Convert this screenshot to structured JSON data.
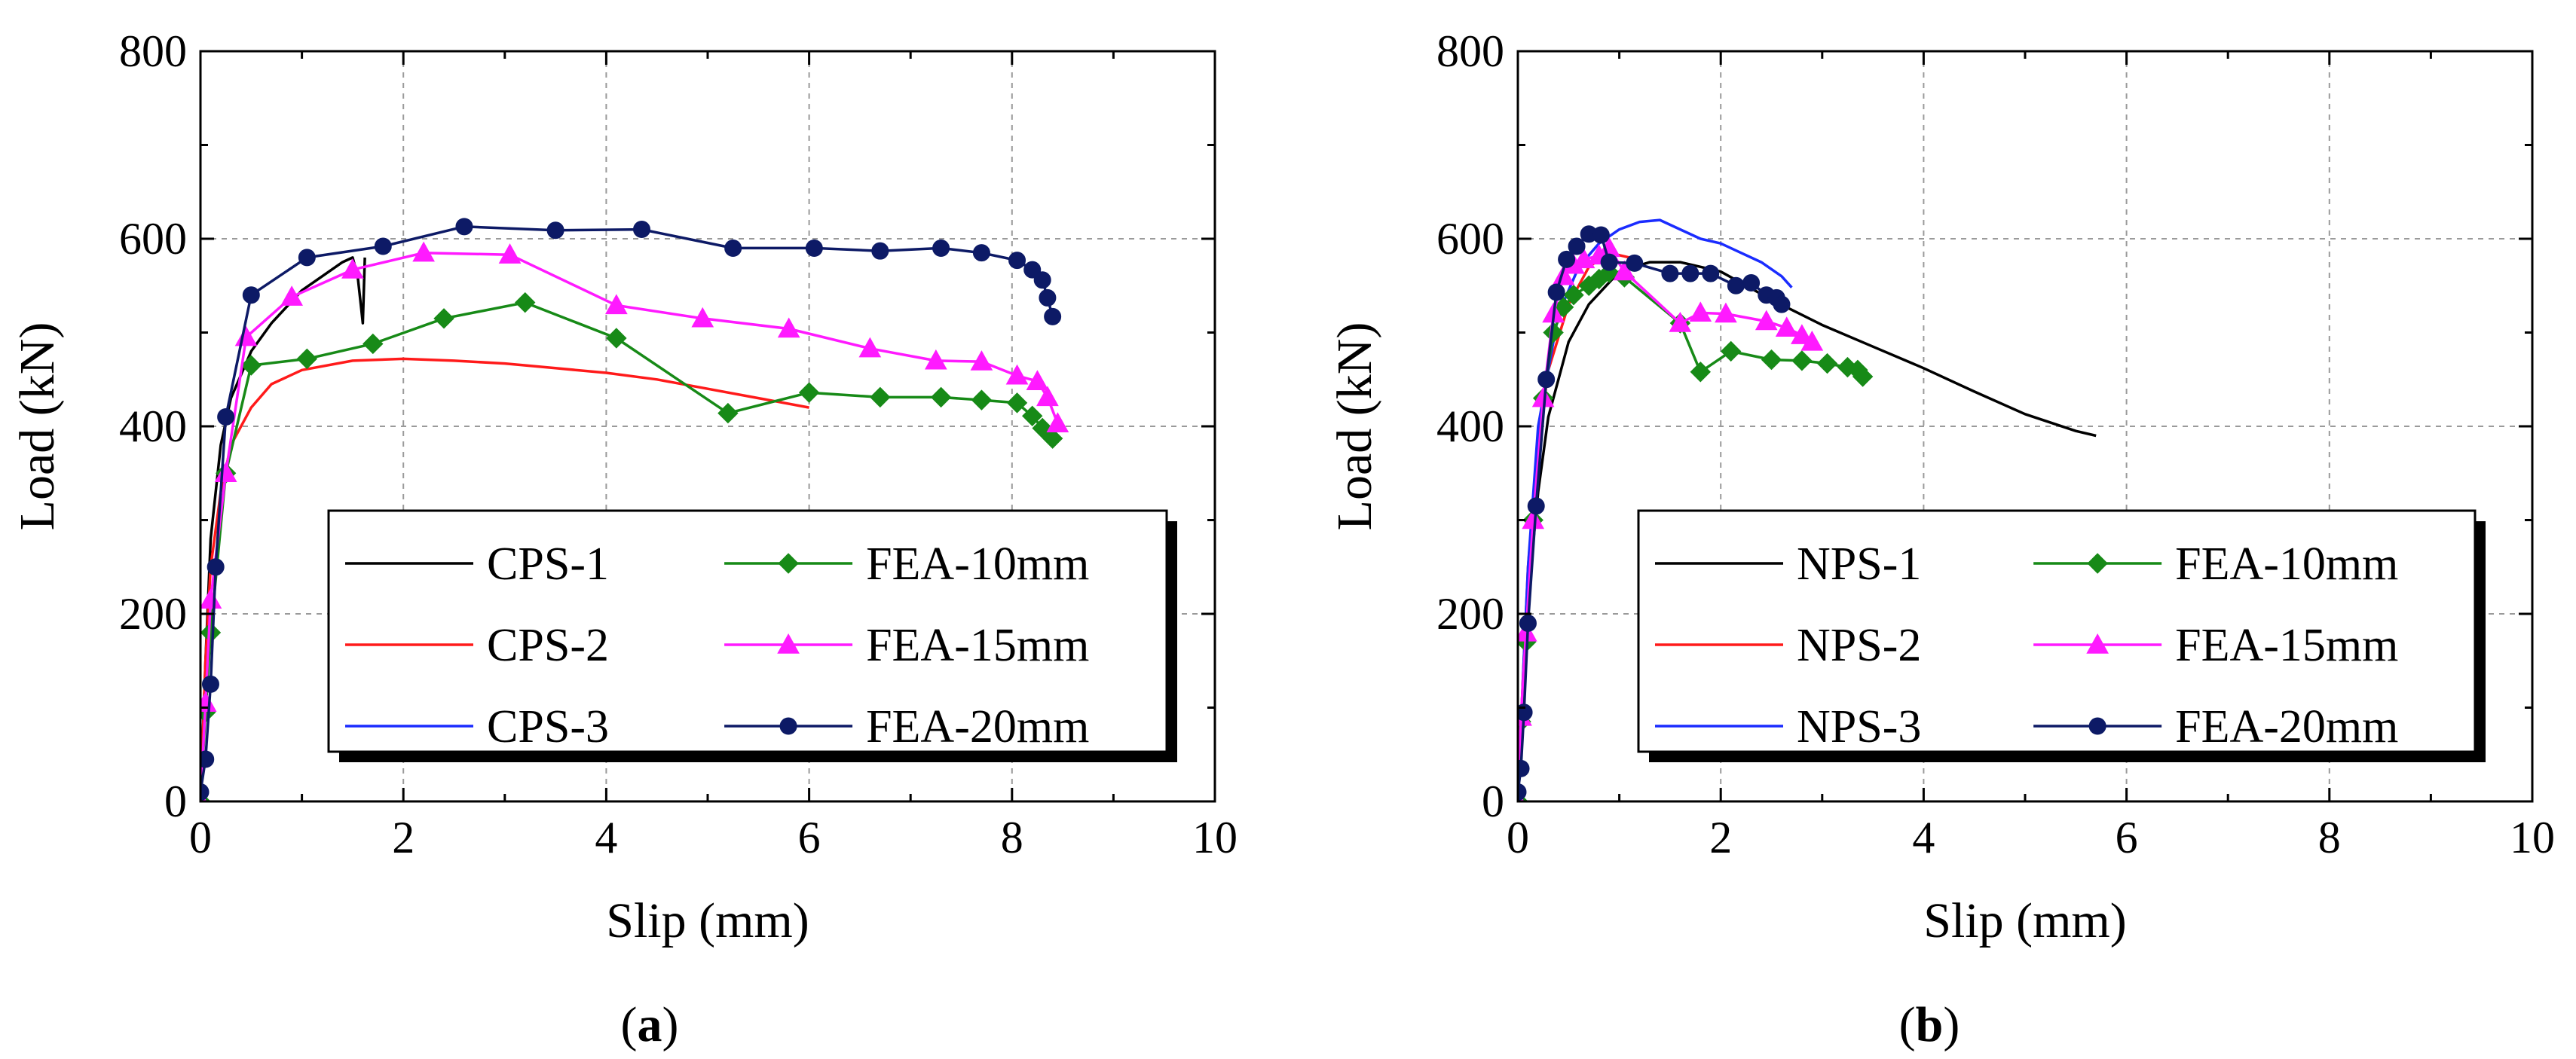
{
  "colors": {
    "black": "#000000",
    "red": "#ff1a1a",
    "blue": "#1a2cff",
    "green": "#178a17",
    "magenta": "#ff1aff",
    "navy": "#0d1a66",
    "grid": "#9a9a9a"
  },
  "chart_data": [
    {
      "panel_label": "(a)",
      "type": "line",
      "xlabel": "Slip (mm)",
      "ylabel": "Load (kN)",
      "xlim": [
        0,
        10
      ],
      "ylim": [
        0,
        800
      ],
      "xticks": [
        "0",
        "2",
        "4",
        "6",
        "8",
        "10"
      ],
      "yticks": [
        "0",
        "200",
        "400",
        "600",
        "800"
      ],
      "grid": true,
      "legend_position": "lower-right",
      "legend_columns": 2,
      "series": [
        {
          "name": "CPS-1",
          "color": "black",
          "marker": "none",
          "x": [
            0,
            0.05,
            0.1,
            0.2,
            0.3,
            0.5,
            0.7,
            1.0,
            1.2,
            1.4,
            1.5,
            1.55,
            1.58,
            1.6,
            1.62
          ],
          "y": [
            0,
            150,
            280,
            380,
            430,
            480,
            510,
            545,
            560,
            575,
            580,
            560,
            530,
            510,
            580
          ]
        },
        {
          "name": "CPS-2",
          "color": "red",
          "marker": "none",
          "x": [
            0,
            0.05,
            0.1,
            0.2,
            0.3,
            0.5,
            0.7,
            1.0,
            1.5,
            2.0,
            2.5,
            3.0,
            3.5,
            4.0,
            4.5,
            5.0,
            5.5,
            6.0
          ],
          "y": [
            0,
            150,
            250,
            330,
            380,
            420,
            445,
            460,
            470,
            472,
            470,
            467,
            462,
            457,
            450,
            440,
            430,
            420
          ]
        },
        {
          "name": "CPS-3",
          "color": "blue",
          "marker": "none",
          "x": [],
          "y": []
        },
        {
          "name": "FEA-10mm",
          "color": "green",
          "marker": "diamond",
          "x": [
            0,
            0.05,
            0.1,
            0.25,
            0.5,
            1.05,
            1.7,
            2.4,
            3.2,
            4.1,
            5.2,
            6.0,
            6.7,
            7.3,
            7.7,
            8.05,
            8.2,
            8.3,
            8.4
          ],
          "y": [
            0,
            95,
            180,
            350,
            465,
            472,
            488,
            515,
            532,
            494,
            414,
            436,
            431,
            431,
            428,
            425,
            411,
            398,
            387
          ]
        },
        {
          "name": "FEA-15mm",
          "color": "magenta",
          "marker": "triangle",
          "x": [
            0,
            0.05,
            0.1,
            0.25,
            0.45,
            0.9,
            1.5,
            2.2,
            3.05,
            4.1,
            4.95,
            5.8,
            6.6,
            7.25,
            7.7,
            8.05,
            8.25,
            8.35,
            8.45
          ],
          "y": [
            0,
            105,
            215,
            350,
            495,
            538,
            567,
            585,
            583,
            529,
            515,
            504,
            483,
            470,
            469,
            454,
            448,
            431,
            403
          ]
        },
        {
          "name": "FEA-20mm",
          "color": "navy",
          "marker": "circle",
          "x": [
            0,
            0.05,
            0.1,
            0.15,
            0.25,
            0.5,
            1.05,
            1.8,
            2.6,
            3.5,
            4.35,
            5.25,
            6.05,
            6.7,
            7.3,
            7.7,
            8.05,
            8.2,
            8.3,
            8.35,
            8.4
          ],
          "y": [
            10,
            45,
            125,
            250,
            410,
            540,
            580,
            592,
            613,
            609,
            610,
            590,
            590,
            587,
            590,
            585,
            577,
            567,
            556,
            537,
            517
          ]
        }
      ]
    },
    {
      "panel_label": "(b)",
      "type": "line",
      "xlabel": "Slip (mm)",
      "ylabel": "Load (kN)",
      "xlim": [
        0,
        10
      ],
      "ylim": [
        0,
        800
      ],
      "xticks": [
        "0",
        "2",
        "4",
        "6",
        "8",
        "10"
      ],
      "yticks": [
        "0",
        "200",
        "400",
        "600",
        "800"
      ],
      "grid": true,
      "legend_position": "lower-right",
      "legend_columns": 2,
      "series": [
        {
          "name": "NPS-1",
          "color": "black",
          "marker": "none",
          "x": [
            0,
            0.05,
            0.1,
            0.2,
            0.3,
            0.5,
            0.7,
            1.0,
            1.3,
            1.6,
            2.0,
            2.5,
            3.0,
            3.5,
            4.0,
            4.5,
            5.0,
            5.5,
            5.7
          ],
          "y": [
            0,
            120,
            220,
            330,
            410,
            490,
            530,
            565,
            575,
            575,
            565,
            535,
            508,
            485,
            462,
            437,
            413,
            395,
            390
          ]
        },
        {
          "name": "NPS-2",
          "color": "red",
          "marker": "none",
          "x": [
            0,
            0.05,
            0.1,
            0.2,
            0.3,
            0.5,
            0.7,
            0.9,
            1.1
          ],
          "y": [
            0,
            130,
            250,
            380,
            460,
            530,
            570,
            585,
            580
          ]
        },
        {
          "name": "NPS-3",
          "color": "blue",
          "marker": "none",
          "x": [
            0,
            0.05,
            0.1,
            0.2,
            0.4,
            0.6,
            0.8,
            1.0,
            1.2,
            1.4,
            1.6,
            1.8,
            2.0,
            2.2,
            2.4,
            2.6,
            2.7
          ],
          "y": [
            0,
            130,
            250,
            400,
            520,
            570,
            595,
            610,
            618,
            620,
            610,
            600,
            595,
            585,
            575,
            560,
            548
          ]
        },
        {
          "name": "FEA-10mm",
          "color": "green",
          "marker": "diamond",
          "x": [
            0,
            0.03,
            0.08,
            0.15,
            0.25,
            0.35,
            0.45,
            0.55,
            0.7,
            0.8,
            0.9,
            1.05,
            1.6,
            1.8,
            2.1,
            2.5,
            2.8,
            3.05,
            3.25,
            3.35,
            3.4
          ],
          "y": [
            0,
            85,
            170,
            300,
            430,
            500,
            527,
            540,
            550,
            557,
            564,
            559,
            510,
            458,
            480,
            471,
            470,
            467,
            463,
            460,
            453
          ]
        },
        {
          "name": "FEA-15mm",
          "color": "magenta",
          "marker": "triangle",
          "x": [
            0,
            0.03,
            0.08,
            0.15,
            0.25,
            0.35,
            0.45,
            0.55,
            0.65,
            0.8,
            0.9,
            1.05,
            1.6,
            1.8,
            2.05,
            2.45,
            2.65,
            2.8,
            2.9
          ],
          "y": [
            0,
            90,
            180,
            300,
            430,
            520,
            560,
            572,
            578,
            582,
            590,
            565,
            510,
            521,
            520,
            512,
            505,
            497,
            490
          ]
        },
        {
          "name": "FEA-20mm",
          "color": "navy",
          "marker": "circle",
          "x": [
            0,
            0.03,
            0.06,
            0.1,
            0.18,
            0.28,
            0.38,
            0.48,
            0.58,
            0.7,
            0.82,
            0.9,
            1.15,
            1.5,
            1.7,
            1.9,
            2.15,
            2.3,
            2.45,
            2.55,
            2.6
          ],
          "y": [
            10,
            35,
            95,
            190,
            315,
            450,
            543,
            578,
            592,
            605,
            604,
            575,
            574,
            563,
            563,
            563,
            550,
            553,
            540,
            537,
            530
          ]
        }
      ]
    }
  ]
}
